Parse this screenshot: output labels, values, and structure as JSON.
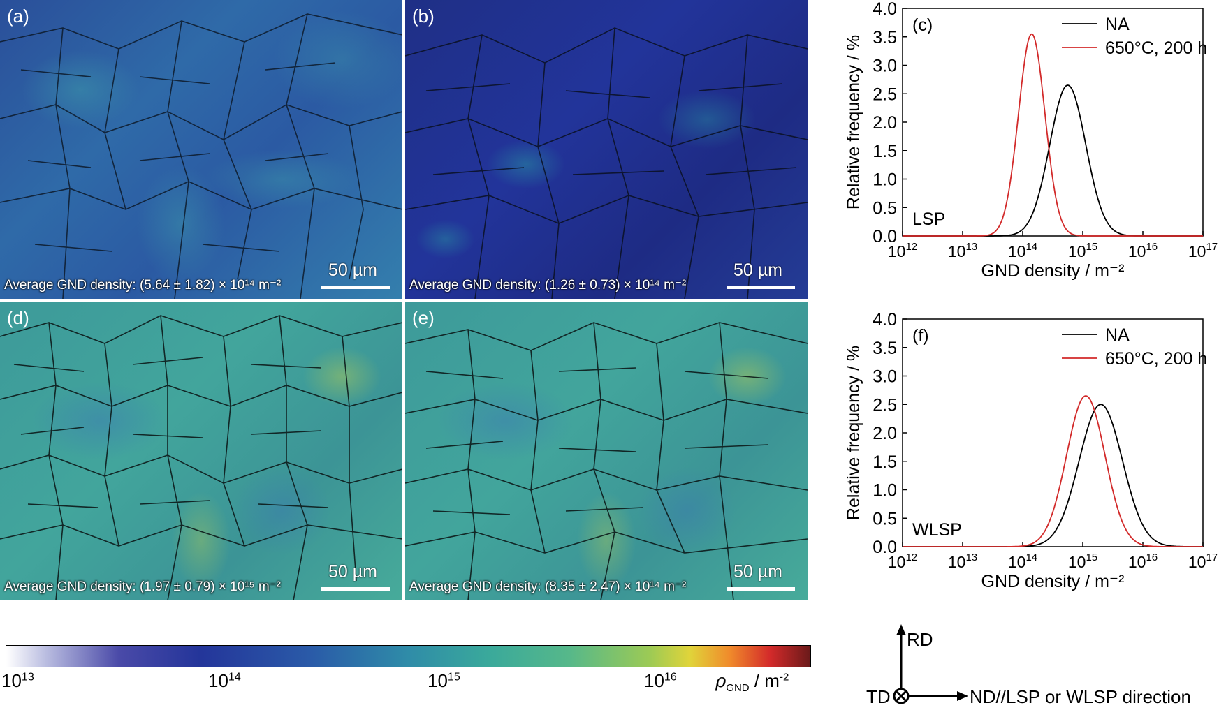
{
  "maps": [
    {
      "label": "(a)",
      "avg_text": "Average GND density: (5.64 ± 1.82) × 10¹⁴ m⁻²",
      "scale": "50 µm",
      "tone": "blue"
    },
    {
      "label": "(b)",
      "avg_text": "Average GND density: (1.26 ± 0.73) × 10¹⁴ m⁻²",
      "scale": "50 µm",
      "tone": "darkblue"
    },
    {
      "label": "(d)",
      "avg_text": "Average GND density: (1.97 ± 0.79) × 10¹⁵ m⁻²",
      "scale": "50 µm",
      "tone": "green"
    },
    {
      "label": "(e)",
      "avg_text": "Average GND density: (8.35 ± 2.47) × 10¹⁴ m⁻²",
      "scale": "50 µm",
      "tone": "green"
    }
  ],
  "colorbar": {
    "ticks": [
      {
        "base": "10",
        "exp": "13"
      },
      {
        "base": "10",
        "exp": "14"
      },
      {
        "base": "10",
        "exp": "15"
      },
      {
        "base": "10",
        "exp": "16"
      }
    ],
    "label_symbol": "ρ",
    "label_sub": "GND",
    "label_unit": " / m",
    "label_unit_exp": "-2"
  },
  "chart_data": [
    {
      "type": "line",
      "panel_label": "(c)",
      "annotation": "LSP",
      "xlabel": "GND density / m⁻²",
      "ylabel": "Relative frequency / %",
      "x_scale": "log",
      "xlim": [
        1000000000000.0,
        1e+17
      ],
      "ylim": [
        0,
        4.0
      ],
      "yticks": [
        "0.0",
        "0.5",
        "1.0",
        "1.5",
        "2.0",
        "2.5",
        "3.0",
        "3.5",
        "4.0"
      ],
      "xticks": [
        {
          "base": "10",
          "exp": "12"
        },
        {
          "base": "10",
          "exp": "13"
        },
        {
          "base": "10",
          "exp": "14"
        },
        {
          "base": "10",
          "exp": "15"
        },
        {
          "base": "10",
          "exp": "16"
        },
        {
          "base": "10",
          "exp": "17"
        }
      ],
      "legend_position": "top-right",
      "series": [
        {
          "name": "NA",
          "color": "#000000",
          "peak_log10": 14.75,
          "sigma_log10": 0.3,
          "peak_value": 2.65
        },
        {
          "name": "650°C, 200 h",
          "color": "#d22a2a",
          "peak_log10": 14.15,
          "sigma_log10": 0.22,
          "peak_value": 3.55
        }
      ]
    },
    {
      "type": "line",
      "panel_label": "(f)",
      "annotation": "WLSP",
      "xlabel": "GND density / m⁻²",
      "ylabel": "Relative frequency / %",
      "x_scale": "log",
      "xlim": [
        1000000000000.0,
        1e+17
      ],
      "ylim": [
        0,
        4.0
      ],
      "yticks": [
        "0.0",
        "0.5",
        "1.0",
        "1.5",
        "2.0",
        "2.5",
        "3.0",
        "3.5",
        "4.0"
      ],
      "xticks": [
        {
          "base": "10",
          "exp": "12"
        },
        {
          "base": "10",
          "exp": "13"
        },
        {
          "base": "10",
          "exp": "14"
        },
        {
          "base": "10",
          "exp": "15"
        },
        {
          "base": "10",
          "exp": "16"
        },
        {
          "base": "10",
          "exp": "17"
        }
      ],
      "legend_position": "top-right",
      "series": [
        {
          "name": "NA",
          "color": "#000000",
          "peak_log10": 15.3,
          "sigma_log10": 0.36,
          "peak_value": 2.5
        },
        {
          "name": "650°C, 200 h",
          "color": "#d22a2a",
          "peak_log10": 15.05,
          "sigma_log10": 0.32,
          "peak_value": 2.65
        }
      ]
    }
  ],
  "axes_legend": {
    "rd": "RD",
    "td": "TD",
    "nd": "ND//LSP or WLSP direction"
  }
}
